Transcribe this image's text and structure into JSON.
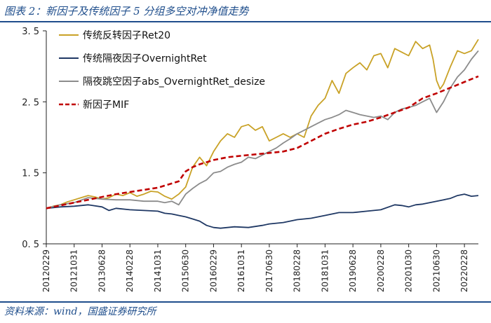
{
  "header": {
    "title": "图表 2：新因子及传统因子 5 分组多空对冲净值走势"
  },
  "footer": {
    "source": "资料来源：wind，国盛证券研究所"
  },
  "colors": {
    "brand": "#1f4e8c",
    "ret20": "#c9a227",
    "overnight": "#1f3864",
    "abs": "#8c8c8c",
    "mif": "#c00000"
  },
  "chart_data": {
    "type": "line",
    "title": "新因子及传统因子 5 分组多空对冲净值走势",
    "xlabel": "",
    "ylabel": "",
    "ylim": [
      0.5,
      3.5
    ],
    "yticks": [
      0.5,
      1.5,
      2.5,
      3.5
    ],
    "ytick_labels": [
      "0. 5",
      "1. 5",
      "2. 5",
      "3. 5"
    ],
    "xlim": [
      0,
      124
    ],
    "x_tick_labels": [
      "20120229",
      "20121031",
      "20130628",
      "20140228",
      "20141031",
      "20150630",
      "20160229",
      "20161031",
      "20170630",
      "20180228",
      "20181031",
      "20190628",
      "20200228",
      "20201030",
      "20210630",
      "20220228"
    ],
    "x_tick_positions": [
      0,
      8,
      16,
      24,
      32,
      40,
      48,
      56,
      64,
      72,
      80,
      88,
      96,
      104,
      112,
      120
    ],
    "legend_position": "top-left",
    "grid": false,
    "series": [
      {
        "name": "传统反转因子Ret20",
        "key": "ret20",
        "style": "solid",
        "points": [
          [
            0,
            1.0
          ],
          [
            2,
            1.03
          ],
          [
            4,
            1.05
          ],
          [
            6,
            1.09
          ],
          [
            8,
            1.12
          ],
          [
            10,
            1.15
          ],
          [
            12,
            1.18
          ],
          [
            14,
            1.16
          ],
          [
            16,
            1.13
          ],
          [
            18,
            1.15
          ],
          [
            20,
            1.2
          ],
          [
            22,
            1.18
          ],
          [
            24,
            1.22
          ],
          [
            26,
            1.17
          ],
          [
            28,
            1.2
          ],
          [
            30,
            1.24
          ],
          [
            32,
            1.23
          ],
          [
            34,
            1.17
          ],
          [
            36,
            1.13
          ],
          [
            38,
            1.2
          ],
          [
            40,
            1.3
          ],
          [
            42,
            1.58
          ],
          [
            44,
            1.72
          ],
          [
            46,
            1.6
          ],
          [
            48,
            1.8
          ],
          [
            50,
            1.95
          ],
          [
            52,
            2.05
          ],
          [
            54,
            2.0
          ],
          [
            56,
            2.15
          ],
          [
            58,
            2.18
          ],
          [
            60,
            2.1
          ],
          [
            62,
            2.15
          ],
          [
            64,
            1.95
          ],
          [
            66,
            2.0
          ],
          [
            68,
            2.05
          ],
          [
            70,
            2.0
          ],
          [
            72,
            2.05
          ],
          [
            74,
            2.0
          ],
          [
            76,
            2.3
          ],
          [
            78,
            2.45
          ],
          [
            80,
            2.55
          ],
          [
            82,
            2.8
          ],
          [
            84,
            2.62
          ],
          [
            86,
            2.9
          ],
          [
            88,
            2.98
          ],
          [
            90,
            3.05
          ],
          [
            92,
            2.95
          ],
          [
            94,
            3.15
          ],
          [
            96,
            3.18
          ],
          [
            98,
            2.98
          ],
          [
            100,
            3.25
          ],
          [
            102,
            3.2
          ],
          [
            104,
            3.15
          ],
          [
            106,
            3.35
          ],
          [
            108,
            3.25
          ],
          [
            110,
            3.3
          ],
          [
            111,
            3.1
          ],
          [
            112,
            2.8
          ],
          [
            113,
            2.68
          ],
          [
            114,
            2.75
          ],
          [
            116,
            3.0
          ],
          [
            118,
            3.22
          ],
          [
            120,
            3.18
          ],
          [
            122,
            3.22
          ],
          [
            124,
            3.38
          ]
        ]
      },
      {
        "name": "传统隔夜因子OvernightRet",
        "key": "overnight",
        "style": "solid",
        "points": [
          [
            0,
            1.0
          ],
          [
            4,
            1.02
          ],
          [
            8,
            1.03
          ],
          [
            12,
            1.05
          ],
          [
            16,
            1.02
          ],
          [
            18,
            0.97
          ],
          [
            20,
            1.0
          ],
          [
            24,
            0.98
          ],
          [
            28,
            0.97
          ],
          [
            32,
            0.96
          ],
          [
            34,
            0.93
          ],
          [
            36,
            0.92
          ],
          [
            38,
            0.9
          ],
          [
            40,
            0.88
          ],
          [
            42,
            0.85
          ],
          [
            44,
            0.82
          ],
          [
            46,
            0.76
          ],
          [
            48,
            0.73
          ],
          [
            50,
            0.72
          ],
          [
            54,
            0.74
          ],
          [
            58,
            0.73
          ],
          [
            62,
            0.76
          ],
          [
            64,
            0.78
          ],
          [
            68,
            0.8
          ],
          [
            72,
            0.84
          ],
          [
            76,
            0.86
          ],
          [
            80,
            0.9
          ],
          [
            84,
            0.94
          ],
          [
            88,
            0.94
          ],
          [
            92,
            0.96
          ],
          [
            96,
            0.98
          ],
          [
            100,
            1.05
          ],
          [
            102,
            1.04
          ],
          [
            104,
            1.02
          ],
          [
            106,
            1.05
          ],
          [
            108,
            1.06
          ],
          [
            110,
            1.08
          ],
          [
            112,
            1.1
          ],
          [
            114,
            1.12
          ],
          [
            116,
            1.14
          ],
          [
            118,
            1.18
          ],
          [
            120,
            1.2
          ],
          [
            122,
            1.17
          ],
          [
            124,
            1.18
          ]
        ]
      },
      {
        "name": "隔夜跳空因子abs_OvernightRet_desize",
        "key": "abs",
        "style": "solid",
        "points": [
          [
            0,
            1.0
          ],
          [
            4,
            1.05
          ],
          [
            8,
            1.08
          ],
          [
            12,
            1.15
          ],
          [
            16,
            1.13
          ],
          [
            20,
            1.12
          ],
          [
            24,
            1.12
          ],
          [
            28,
            1.1
          ],
          [
            32,
            1.1
          ],
          [
            34,
            1.08
          ],
          [
            36,
            1.1
          ],
          [
            38,
            1.05
          ],
          [
            40,
            1.2
          ],
          [
            42,
            1.28
          ],
          [
            44,
            1.35
          ],
          [
            46,
            1.4
          ],
          [
            48,
            1.5
          ],
          [
            50,
            1.52
          ],
          [
            52,
            1.58
          ],
          [
            54,
            1.62
          ],
          [
            56,
            1.65
          ],
          [
            58,
            1.72
          ],
          [
            60,
            1.7
          ],
          [
            62,
            1.75
          ],
          [
            64,
            1.8
          ],
          [
            66,
            1.85
          ],
          [
            68,
            1.92
          ],
          [
            70,
            1.98
          ],
          [
            72,
            2.05
          ],
          [
            74,
            2.1
          ],
          [
            76,
            2.15
          ],
          [
            78,
            2.2
          ],
          [
            80,
            2.25
          ],
          [
            82,
            2.28
          ],
          [
            84,
            2.32
          ],
          [
            86,
            2.38
          ],
          [
            88,
            2.35
          ],
          [
            90,
            2.32
          ],
          [
            92,
            2.3
          ],
          [
            94,
            2.28
          ],
          [
            96,
            2.3
          ],
          [
            98,
            2.25
          ],
          [
            100,
            2.35
          ],
          [
            102,
            2.4
          ],
          [
            104,
            2.42
          ],
          [
            106,
            2.45
          ],
          [
            108,
            2.5
          ],
          [
            110,
            2.55
          ],
          [
            112,
            2.35
          ],
          [
            114,
            2.5
          ],
          [
            116,
            2.7
          ],
          [
            118,
            2.85
          ],
          [
            120,
            2.95
          ],
          [
            122,
            3.1
          ],
          [
            124,
            3.22
          ]
        ]
      },
      {
        "name": "新因子MIF",
        "key": "mif",
        "style": "dashed",
        "points": [
          [
            0,
            1.0
          ],
          [
            4,
            1.04
          ],
          [
            8,
            1.08
          ],
          [
            12,
            1.12
          ],
          [
            16,
            1.16
          ],
          [
            20,
            1.2
          ],
          [
            24,
            1.23
          ],
          [
            28,
            1.26
          ],
          [
            32,
            1.29
          ],
          [
            36,
            1.35
          ],
          [
            38,
            1.38
          ],
          [
            40,
            1.52
          ],
          [
            42,
            1.58
          ],
          [
            44,
            1.62
          ],
          [
            46,
            1.65
          ],
          [
            48,
            1.68
          ],
          [
            50,
            1.7
          ],
          [
            52,
            1.72
          ],
          [
            56,
            1.74
          ],
          [
            60,
            1.76
          ],
          [
            64,
            1.78
          ],
          [
            68,
            1.8
          ],
          [
            72,
            1.85
          ],
          [
            76,
            1.95
          ],
          [
            80,
            2.05
          ],
          [
            84,
            2.12
          ],
          [
            88,
            2.18
          ],
          [
            92,
            2.22
          ],
          [
            96,
            2.28
          ],
          [
            100,
            2.35
          ],
          [
            104,
            2.42
          ],
          [
            108,
            2.55
          ],
          [
            112,
            2.62
          ],
          [
            116,
            2.7
          ],
          [
            120,
            2.78
          ],
          [
            124,
            2.86
          ]
        ]
      }
    ]
  }
}
